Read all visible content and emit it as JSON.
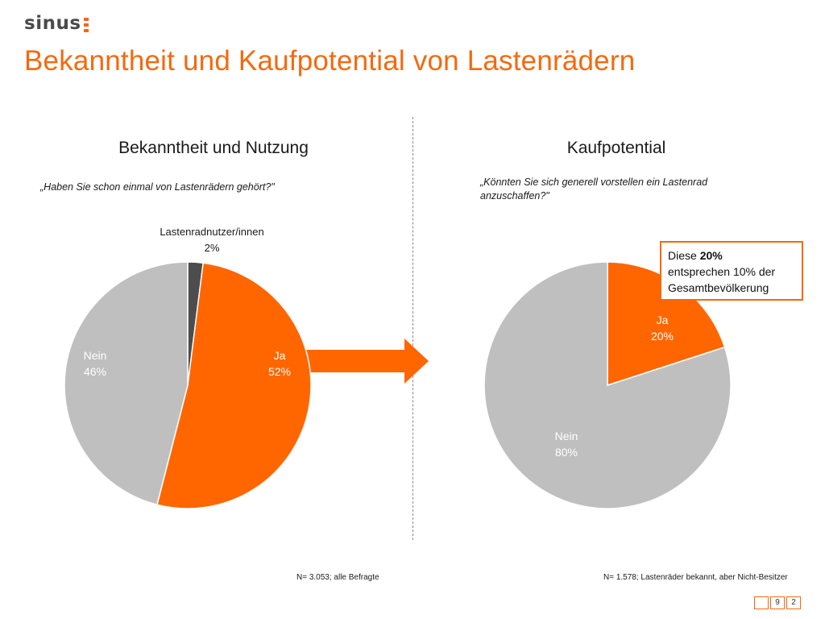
{
  "logo": {
    "text": "sinus"
  },
  "page_title": "Bekanntheit und Kaufpotential von Lastenrädern",
  "left": {
    "title": "Bekanntheit und Nutzung",
    "question": "„Haben Sie schon einmal von Lastenrädern gehört?\"",
    "footnote": "N= 3.053; alle Befragte"
  },
  "right": {
    "title": "Kaufpotential",
    "question_line1": "„Könnten Sie sich generell vorstellen ein Lastenrad",
    "question_line2": "anzuschaffen?\"",
    "footnote": "N= 1.578; Lastenräder bekannt, aber Nicht-Besitzer"
  },
  "callout": {
    "prefix": "Diese ",
    "highlight": "20%",
    "line2": "entsprechen 10% der",
    "line3": "Gesamtbevölkerung"
  },
  "pager": {
    "box1": "",
    "box2": "9",
    "box3": "2"
  },
  "colors": {
    "accent": "#f26a10",
    "grey": "#bfbfbf",
    "dark": "#4d4d4d"
  },
  "chart_data": [
    {
      "type": "pie",
      "title": "Bekanntheit und Nutzung",
      "slices": [
        {
          "label": "Lastenradnutzer/innen",
          "value": 2,
          "value_label": "2%",
          "color": "#4d4d4d"
        },
        {
          "label": "Ja",
          "value": 52,
          "value_label": "52%",
          "color": "#ff6600"
        },
        {
          "label": "Nein",
          "value": 46,
          "value_label": "46%",
          "color": "#bfbfbf"
        }
      ]
    },
    {
      "type": "pie",
      "title": "Kaufpotential",
      "slices": [
        {
          "label": "Ja",
          "value": 20,
          "value_label": "20%",
          "color": "#ff6600"
        },
        {
          "label": "Nein",
          "value": 80,
          "value_label": "80%",
          "color": "#bfbfbf"
        }
      ]
    }
  ]
}
